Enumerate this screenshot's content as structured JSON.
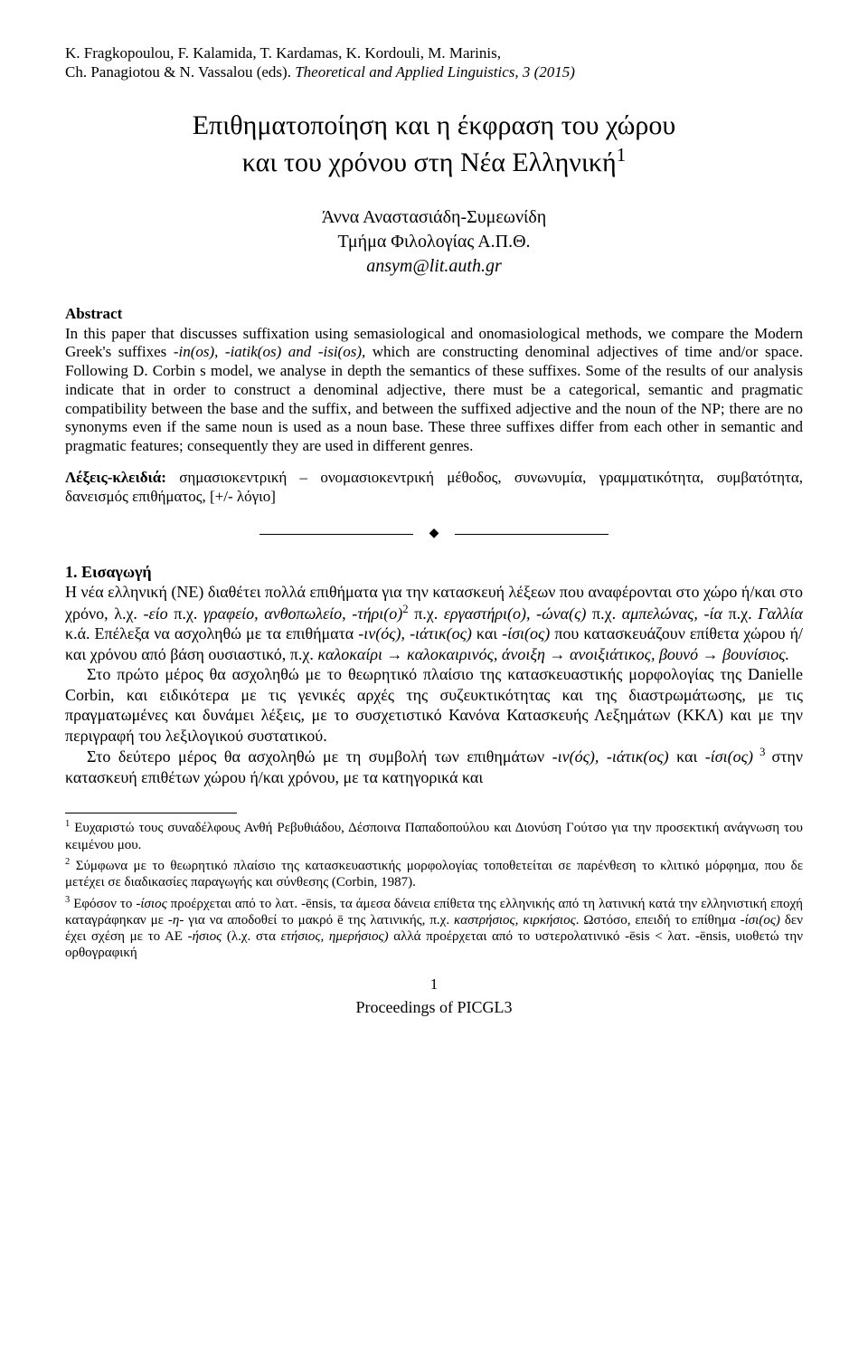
{
  "header": {
    "line1": "K. Fragkopoulou, F. Kalamida, T. Kardamas, K. Kordouli, M. Marinis,",
    "line2_plain": "Ch. Panagiotou & N. Vassalou (eds). ",
    "line2_italic": "Theoretical and Applied Linguistics, 3 (2015)"
  },
  "title": {
    "line1": "Επιθηματοποίηση και η έκφραση του χώρου",
    "line2": "και του χρόνου στη Νέα Ελληνική",
    "sup": "1"
  },
  "author": {
    "name": "Άννα Αναστασιάδη-Συμεωνίδη",
    "affiliation": "Τμήμα Φιλολογίας Α.Π.Θ.",
    "email": "ansym@lit.auth.gr"
  },
  "abstract": {
    "heading": "Abstract",
    "body_pre": "In this paper that discusses suffixation using semasiological and onomasiological methods, we compare the Modern Greek's suffixes ",
    "body_ital1": "-in(os), -iatik(os) and -isi(os),",
    "body_post": " which are constructing denominal adjectives of time and/or space. Following D. Corbin s model, we analyse in depth the semantics of these suffixes. Some of the results of our analysis indicate that in order to construct a denominal adjective, there must be a categorical, semantic and pragmatic compatibility between the base and the suffix, and between the suffixed adjective and the noun of the NP; there are no synonyms even if the same noun is used as a noun base. These three suffixes differ from each other in semantic and pragmatic features; consequently they are used in different genres."
  },
  "keywords": {
    "label": "Λέξεις-κλειδιά: ",
    "text": "σημασιοκεντρική – ονομασιοκεντρική μέθοδος, συνωνυμία, γραμματικότητα, συμβατότητα, δανεισμός επιθήματος, [+/- λόγιο]"
  },
  "section1": {
    "heading": "1. Εισαγωγή",
    "p1a": "Η νέα ελληνική (ΝΕ) διαθέτει πολλά επιθήματα για την κατασκευή λέξεων που αναφέρονται στο χώρο ή/και στο χρόνο, λ.χ. ",
    "p1b": "-είο",
    "p1c": " π.χ. ",
    "p1d": "γραφείο, ανθοπωλείο, -τήρι(ο)",
    "p1sup2": "2",
    "p1e": " π.χ. ",
    "p1f": "εργαστήρι(ο), -ώνα(ς)",
    "p1g": " π.χ. ",
    "p1h": "αμπελώνας, -ία",
    "p1i": " π.χ. ",
    "p1j": "Γαλλία",
    "p1k": " κ.ά. Επέλεξα να ασχοληθώ με τα επιθήματα ",
    "p1l": "-ιν(ός), -ιάτικ(ος)",
    "p1m": " και ",
    "p1n": "-ίσι(ος)",
    "p1o": "   που κατασκευάζουν επίθετα χώρου ή/και χρόνου από βάση ουσιαστικό, π.χ. ",
    "p1p": "καλοκαίρι → καλοκαιρινός, άνοιξη → ανοιξιάτικος, βουνό → βουνίσιος.",
    "p2": "Στο πρώτο μέρος θα ασχοληθώ με το θεωρητικό πλαίσιο της κατασκευαστικής μορφολογίας της Danielle Corbin, και ειδικότερα με τις γενικές αρχές της συζευκτικότητας και της διαστρωμάτωσης, με τις πραγματωμένες και δυνάμει λέξεις, με το συσχετιστικό Κανόνα Κατασκευής Λεξημάτων (ΚΚΛ) και με την περιγραφή του λεξιλογικού συστατικού.",
    "p3a": "Στο δεύτερο μέρος θα ασχοληθώ με τη συμβολή των επιθημάτων ",
    "p3b": "-ιν(ός), -ιάτικ(ος)",
    "p3c": " και ",
    "p3d": "-ίσι(ος)",
    "p3sup3": " 3 ",
    "p3e": "στην κατασκευή επιθέτων χώρου ή/και χρόνου, με τα κατηγορικά και"
  },
  "footnotes": {
    "f1sup": "1",
    "f1": " Ευχαριστώ τους συναδέλφους Ανθή Ρεβυθιάδου, Δέσποινα Παπαδοπούλου και Διονύση Γούτσο για την προσεκτική ανάγνωση του κειμένου μου.",
    "f2sup": "2",
    "f2": " Σύμφωνα με το θεωρητικό πλαίσιο της κατασκευαστικής μορφολογίας τοποθετείται σε παρένθεση το κλιτικό μόρφημα, που δε μετέχει σε διαδικασίες παραγωγής και σύνθεσης (Corbin, 1987).",
    "f3sup": "3",
    "f3a": " Εφόσον το ",
    "f3b": "-ίσιος",
    "f3c": " προέρχεται από το λατ. -ēnsis, τα άμεσα δάνεια επίθετα της ελληνικής από τη λατινική κατά την ελληνιστική εποχή καταγράφηκαν με ",
    "f3d": "-η-",
    "f3e": " για να αποδοθεί το μακρό ē της λατινικής, π.χ. ",
    "f3f": "καστρήσιος, κιρκήσιος",
    "f3g": ". Ωστόσο, επειδή το επίθημα ",
    "f3h": "-ίσι(ος)",
    "f3i": " δεν έχει σχέση με το ΑΕ ",
    "f3j": "-ήσιος",
    "f3k": " (λ.χ. στα ",
    "f3l": "ετήσιος, ημερήσιος)",
    "f3m": " αλλά προέρχεται από το υστερολατινικό -ēsis < λατ. -ēnsis, υιοθετώ την ορθογραφική"
  },
  "footer": {
    "page": "1",
    "proceedings": "Proceedings of PICGL3"
  }
}
